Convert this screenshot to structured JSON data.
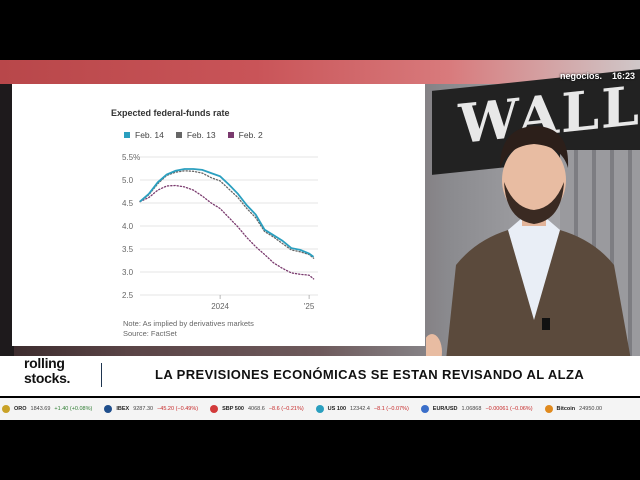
{
  "overlay": {
    "channel": "negocios.",
    "time": "16:23",
    "background_sign": "WALL"
  },
  "chart_data": {
    "type": "line",
    "title": "Expected federal-funds rate",
    "xlabel": "",
    "ylabel": "",
    "ylim": [
      2.5,
      5.5
    ],
    "y_ticks": [
      "5.5%",
      "5.0",
      "4.5",
      "4.0",
      "3.5",
      "3.0",
      "2.5"
    ],
    "y_tick_values": [
      5.5,
      5.0,
      4.5,
      4.0,
      3.5,
      3.0,
      2.5
    ],
    "x_ticks": [
      "2024",
      "'25"
    ],
    "x_tick_values": [
      2024.0,
      2025.0
    ],
    "xlim": [
      2023.1,
      2025.1
    ],
    "grid": true,
    "legend_position": "top-left",
    "series": [
      {
        "name": "Feb. 14",
        "color": "#2a9fbf",
        "style": "solid",
        "x": [
          2023.1,
          2023.2,
          2023.3,
          2023.4,
          2023.5,
          2023.6,
          2023.7,
          2023.8,
          2023.9,
          2024.0,
          2024.1,
          2024.2,
          2024.3,
          2024.4,
          2024.5,
          2024.6,
          2024.7,
          2024.8,
          2024.9,
          2025.0,
          2025.05
        ],
        "values": [
          4.53,
          4.7,
          4.95,
          5.12,
          5.2,
          5.24,
          5.24,
          5.22,
          5.15,
          5.08,
          4.9,
          4.7,
          4.45,
          4.25,
          3.92,
          3.8,
          3.68,
          3.52,
          3.48,
          3.4,
          3.33
        ]
      },
      {
        "name": "Feb. 13",
        "color": "#666666",
        "style": "dotted",
        "x": [
          2023.1,
          2023.2,
          2023.3,
          2023.4,
          2023.5,
          2023.6,
          2023.7,
          2023.8,
          2023.9,
          2024.0,
          2024.1,
          2024.2,
          2024.3,
          2024.4,
          2024.5,
          2024.6,
          2024.7,
          2024.8,
          2024.9,
          2025.0,
          2025.05
        ],
        "values": [
          4.53,
          4.68,
          4.92,
          5.1,
          5.17,
          5.2,
          5.19,
          5.15,
          5.05,
          4.98,
          4.8,
          4.62,
          4.38,
          4.18,
          3.88,
          3.76,
          3.62,
          3.48,
          3.44,
          3.38,
          3.3
        ]
      },
      {
        "name": "Feb. 2",
        "color": "#7a3a6e",
        "style": "dotted",
        "x": [
          2023.1,
          2023.2,
          2023.3,
          2023.4,
          2023.5,
          2023.6,
          2023.7,
          2023.8,
          2023.9,
          2024.0,
          2024.1,
          2024.2,
          2024.3,
          2024.4,
          2024.5,
          2024.6,
          2024.7,
          2024.8,
          2024.9,
          2025.0,
          2025.05
        ],
        "values": [
          4.53,
          4.62,
          4.78,
          4.87,
          4.88,
          4.85,
          4.78,
          4.65,
          4.5,
          4.38,
          4.18,
          3.98,
          3.75,
          3.55,
          3.38,
          3.2,
          3.08,
          2.98,
          2.95,
          2.93,
          2.85
        ]
      }
    ],
    "annotations": [
      "Note: As implied by derivatives markets",
      "Source: FactSet"
    ]
  },
  "lower_third": {
    "logo_line1": "rolling",
    "logo_line2": "stocks.",
    "headline": "LA PREVISIONES ECONÓMICAS SE ESTAN REVISANDO AL ALZA"
  },
  "ticker": [
    {
      "name": "ORO",
      "value": "1843.69",
      "change": "+1.40 (+0.08%)",
      "color": "#c9a227",
      "dir": "up"
    },
    {
      "name": "IBEX",
      "value": "9287.30",
      "change": "−45.20 (−0.49%)",
      "color": "#1f4e8c",
      "dir": "down"
    },
    {
      "name": "SBP 500",
      "value": "4068.6",
      "change": "−8.6 (−0.21%)",
      "color": "#d23a3a",
      "dir": "down"
    },
    {
      "name": "US 100",
      "value": "12342.4",
      "change": "−8.1 (−0.07%)",
      "color": "#2a9fbf",
      "dir": "down"
    },
    {
      "name": "EUR/USD",
      "value": "1.06868",
      "change": "−0.00061 (−0.06%)",
      "color": "#3a6ec9",
      "dir": "down"
    },
    {
      "name": "Bitcoin",
      "value": "24950.00",
      "change": "",
      "color": "#e08a1e",
      "dir": "up"
    }
  ],
  "colors": {
    "accent_red": "#c62828",
    "accent_green": "#2e7d32",
    "divider_navy": "#1f3550"
  }
}
